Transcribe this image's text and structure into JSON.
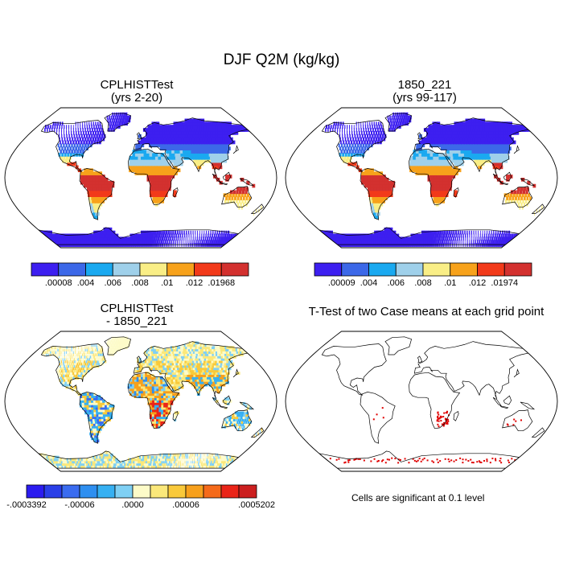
{
  "title": "DJF Q2M (kg/kg)",
  "panels": [
    {
      "id": "a",
      "title_lines": [
        "CPLHISTTest",
        "(yrs 2-20)"
      ],
      "colorbar": {
        "colors": [
          "#3d1ff0",
          "#3c68e8",
          "#1aa9f0",
          "#9fd0ea",
          "#f9ee86",
          "#f7a21b",
          "#f23a1a",
          "#d3312f"
        ],
        "labels": [
          ".00008",
          ".004",
          ".006",
          ".008",
          ".01",
          ".012",
          ".01968"
        ]
      }
    },
    {
      "id": "b",
      "title_lines": [
        "1850_221",
        "(yrs 99-117)"
      ],
      "colorbar": {
        "colors": [
          "#3d1ff0",
          "#3c68e8",
          "#1aa9f0",
          "#9fd0ea",
          "#f9ee86",
          "#f7a21b",
          "#f23a1a",
          "#d3312f"
        ],
        "labels": [
          ".00009",
          ".004",
          ".006",
          ".008",
          ".01",
          ".012",
          ".01974"
        ]
      }
    },
    {
      "id": "c",
      "title_lines": [
        "CPLHISTTest",
        "- 1850_221"
      ],
      "colorbar": {
        "colors": [
          "#2b1cf0",
          "#2a3fe8",
          "#3a6cf0",
          "#2e8ff0",
          "#36b0f2",
          "#7fd0f4",
          "#fdfbc8",
          "#fbe87a",
          "#f9c93a",
          "#f7a01c",
          "#f56a1a",
          "#ea2418",
          "#cc1f1f"
        ],
        "labels": [
          "-.0003392",
          "-.00006",
          ".0000",
          ".00006",
          ".0005202"
        ]
      }
    },
    {
      "id": "d",
      "title_lines": [
        "T-Test of two Case means at each grid point"
      ],
      "note": "Cells are significant at 0.1 level"
    }
  ],
  "chart_data": [
    {
      "type": "heatmap",
      "title": "CPLHISTTest (yrs 2-20)",
      "variable": "DJF Q2M (kg/kg)",
      "projection": "Robinson",
      "color_levels": [
        8e-05,
        0.004,
        0.006,
        0.008,
        0.01,
        0.012,
        0.01968
      ],
      "colors": [
        "#3d1ff0",
        "#3c68e8",
        "#1aa9f0",
        "#9fd0ea",
        "#f9ee86",
        "#f7a21b",
        "#f23a1a",
        "#d3312f"
      ],
      "min": 8e-05,
      "max": 0.01968
    },
    {
      "type": "heatmap",
      "title": "1850_221 (yrs 99-117)",
      "variable": "DJF Q2M (kg/kg)",
      "projection": "Robinson",
      "color_levels": [
        9e-05,
        0.004,
        0.006,
        0.008,
        0.01,
        0.012,
        0.01974
      ],
      "colors": [
        "#3d1ff0",
        "#3c68e8",
        "#1aa9f0",
        "#9fd0ea",
        "#f9ee86",
        "#f7a21b",
        "#f23a1a",
        "#d3312f"
      ],
      "min": 9e-05,
      "max": 0.01974
    },
    {
      "type": "heatmap",
      "title": "CPLHISTTest - 1850_221",
      "projection": "Robinson",
      "color_labels": [
        -0.0003392,
        -6e-05,
        0.0,
        6e-05,
        0.0005202
      ],
      "min": -0.0003392,
      "max": 0.0005202
    },
    {
      "type": "heatmap",
      "title": "T-Test of two Case means at each grid point",
      "projection": "Robinson",
      "significance_level": 0.1,
      "significant_cells_color": "#e00000"
    }
  ]
}
